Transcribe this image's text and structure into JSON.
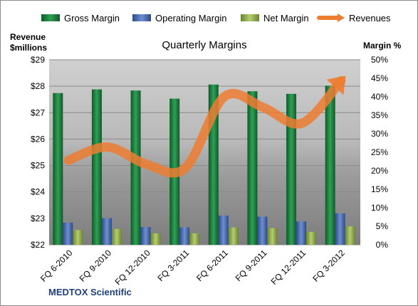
{
  "chart_data": {
    "type": "bar",
    "title": "Quarterly Margins",
    "footer": "MEDTOX Scientific",
    "left_axis_label_line1": "Revenue",
    "left_axis_label_line2": "$millions",
    "right_axis_label": "Margin %",
    "categories": [
      "FQ 6-2010",
      "FQ 9-2010",
      "FQ 12-2010",
      "FQ 3-2011",
      "FQ 6-2011",
      "FQ 9-2011",
      "FQ 12-2011",
      "FQ 3-2012"
    ],
    "left_axis": {
      "min": 22,
      "max": 29,
      "ticks": [
        "$22",
        "$23",
        "$24",
        "$25",
        "$26",
        "$27",
        "$28",
        "$29"
      ]
    },
    "right_axis": {
      "min": 0,
      "max": 50,
      "ticks": [
        "0%",
        "5%",
        "10%",
        "15%",
        "20%",
        "25%",
        "30%",
        "35%",
        "40%",
        "45%",
        "50%"
      ]
    },
    "series": [
      {
        "name": "Gross Margin",
        "axis": "right",
        "kind": "bar",
        "color": "#1e7d3e",
        "values": [
          41.0,
          42.0,
          41.7,
          39.5,
          43.3,
          41.5,
          40.8,
          43.0
        ]
      },
      {
        "name": "Operating Margin",
        "axis": "right",
        "kind": "bar",
        "color": "#3f62a8",
        "values": [
          6.0,
          7.2,
          4.8,
          4.7,
          7.9,
          7.6,
          6.3,
          8.5
        ]
      },
      {
        "name": "Net Margin",
        "axis": "right",
        "kind": "bar",
        "color": "#8da848",
        "values": [
          4.0,
          4.3,
          3.1,
          3.1,
          4.7,
          4.5,
          3.5,
          5.0
        ]
      },
      {
        "name": "Revenues",
        "axis": "left",
        "kind": "line",
        "color": "#ed7d31",
        "values": [
          25.2,
          25.7,
          25.05,
          24.9,
          27.6,
          27.2,
          26.6,
          28.2
        ]
      }
    ],
    "grid": true,
    "legend_position": "top"
  }
}
